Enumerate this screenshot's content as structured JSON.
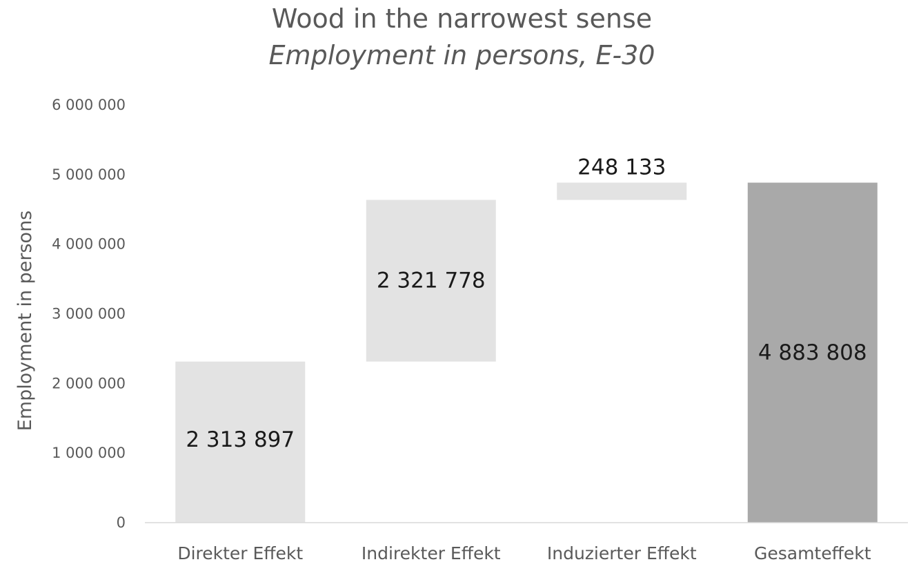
{
  "title": "Wood in the narrowest sense",
  "subtitle": "Employment in persons, E-30",
  "chart_data": {
    "type": "bar",
    "subtype": "waterfall",
    "title": "Wood in the narrowest sense",
    "subtitle": "Employment in persons, E-30",
    "xlabel": "",
    "ylabel": "Employment in persons",
    "ylim": [
      0,
      6000000
    ],
    "yticks": [
      0,
      1000000,
      2000000,
      3000000,
      4000000,
      5000000,
      6000000
    ],
    "ytick_labels": [
      "0",
      "1 000 000",
      "2 000 000",
      "3 000 000",
      "4 000 000",
      "5 000 000",
      "6 000 000"
    ],
    "categories": [
      "Direkter Effekt",
      "Indirekter Effekt",
      "Induzierter Effekt",
      "Gesamteffekt"
    ],
    "values": [
      2313897,
      2321778,
      248133,
      4883808
    ],
    "bases": [
      0,
      2313897,
      4635675,
      0
    ],
    "value_labels": [
      "2 313 897",
      "2 321 778",
      "248 133",
      "4 883 808"
    ],
    "colors": [
      "#e3e3e3",
      "#e3e3e3",
      "#e3e3e3",
      "#a9a9a9"
    ],
    "grid": false,
    "legend": "none"
  }
}
